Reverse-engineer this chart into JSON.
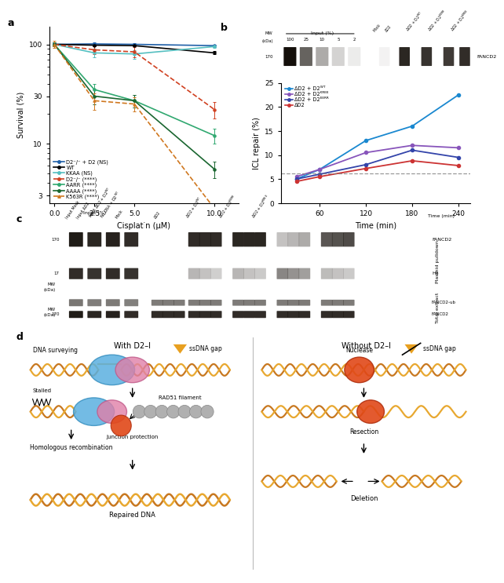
{
  "panel_a": {
    "xlabel": "Cisplatin (μM)",
    "ylabel": "Survival (%)",
    "xdata": [
      0,
      2.5,
      5,
      10
    ],
    "lines": [
      {
        "label": "D2⁻/⁻ + D2 (NS)",
        "color": "#2060a8",
        "style": "-",
        "values": [
          100,
          101,
          100,
          97
        ],
        "yerr": [
          2,
          3,
          3,
          3
        ],
        "marker": "o"
      },
      {
        "label": "WT",
        "color": "#000000",
        "style": "-",
        "values": [
          100,
          98,
          97,
          82
        ],
        "yerr": [
          2,
          2,
          2,
          3
        ],
        "marker": "o"
      },
      {
        "label": "KKAA (NS)",
        "color": "#55bfc0",
        "style": "-",
        "values": [
          100,
          82,
          80,
          95
        ],
        "yerr": [
          3,
          8,
          8,
          3
        ],
        "marker": "o"
      },
      {
        "label": "D2⁻/⁻ (****)",
        "color": "#d04020",
        "style": "--",
        "values": [
          100,
          88,
          84,
          22
        ],
        "yerr": [
          5,
          8,
          10,
          4
        ],
        "marker": "o"
      },
      {
        "label": "AARR (****)",
        "color": "#30a870",
        "style": "-",
        "values": [
          100,
          35,
          27,
          12
        ],
        "yerr": [
          5,
          5,
          4,
          2
        ],
        "marker": "o"
      },
      {
        "label": "AAAA (****)",
        "color": "#1a6630",
        "style": "-",
        "values": [
          100,
          30,
          27,
          5.5
        ],
        "yerr": [
          5,
          5,
          4,
          1
        ],
        "marker": "o"
      },
      {
        "label": "K563R (****)",
        "color": "#d07820",
        "style": "--",
        "values": [
          100,
          27,
          25,
          2.2
        ],
        "yerr": [
          8,
          5,
          4,
          0.3
        ],
        "marker": "^"
      }
    ],
    "yticks": [
      3,
      10,
      30,
      100
    ],
    "xticks": [
      0,
      2.5,
      5,
      10
    ],
    "ylim": [
      2.5,
      150
    ]
  },
  "panel_b": {
    "xlabel": "Time (min)",
    "ylabel": "ICL repair (%)",
    "xdata": [
      30,
      60,
      120,
      180,
      240
    ],
    "lines": [
      {
        "label": "ΔD2 + D2ᵂᵀ",
        "color": "#1a88d0",
        "values": [
          5.0,
          7.0,
          13.0,
          16.0,
          22.5
        ],
        "marker": "o"
      },
      {
        "label": "ΔD2 + D2ᴷᴿᴱᴱ",
        "color": "#8855bb",
        "values": [
          5.5,
          7.0,
          10.5,
          12.0,
          11.5
        ],
        "marker": "o"
      },
      {
        "label": "ΔD2 + D2ᴱᴱᴿᴿ",
        "color": "#3344aa",
        "values": [
          5.0,
          6.0,
          8.0,
          11.0,
          9.5
        ],
        "marker": "o"
      },
      {
        "label": "ΔD2",
        "color": "#cc3333",
        "values": [
          4.5,
          5.5,
          7.2,
          8.8,
          7.8
        ],
        "marker": "o"
      }
    ],
    "dashed_line_y": 6.2,
    "ylim": [
      0,
      25
    ],
    "xlim": [
      10,
      255
    ],
    "xticks": [
      60,
      120,
      180,
      240
    ],
    "gel_input_labels": [
      "100",
      "25",
      "10",
      "5",
      "2"
    ],
    "gel_lane_labels": [
      "Mock",
      "ΔD2",
      "ΔD2 + D2ᵂᵀ",
      "ΔD2 + D2ᴱᴱᴿᴿ",
      "ΔD2 + D2ᴷᴿᴱᴱ"
    ]
  },
  "panel_c": {
    "fancd2_label": "FANCD2",
    "h3_label": "H3",
    "fancd2ub_label": "FANCD2-ub",
    "pulldown_label": "Plasmid pulldown",
    "total_label": "Total extract",
    "mw170": "170",
    "mw17": "17",
    "time_label": "Time (min)"
  },
  "panel_d": {
    "left_title": "With D2–I",
    "right_title": "Without D2–I",
    "label_surveying": "DNA surveying",
    "label_stalled": "Stalled",
    "label_rad51": "RAD51 filament",
    "label_junction": "Junction protection",
    "label_hr": "Homologous recombination",
    "label_repaired": "Repaired DNA",
    "label_nuclease": "Nuclease",
    "label_resection": "Resection",
    "label_deletion": "Deletion",
    "label_ssdna": "ssDNA gap",
    "dna_color1": "#c87820",
    "dna_color2": "#e8a830",
    "dna_color_light": "#f0c878",
    "blob_blue": "#5ab0e0",
    "blob_pink": "#e080a8",
    "blob_red": "#e04818",
    "blob_gray": "#b0b0b0"
  },
  "figure_bg": "#ffffff"
}
